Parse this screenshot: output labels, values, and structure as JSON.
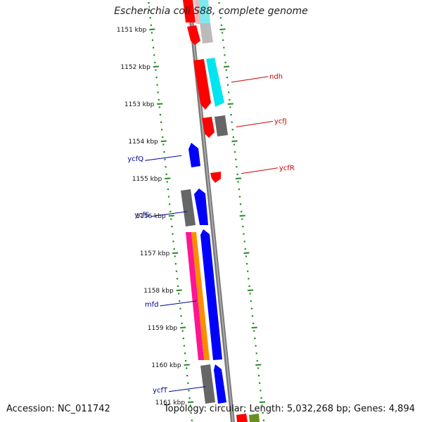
{
  "title": "Escherichia coli S88, complete genome",
  "footer": {
    "accession": "Accession: NC_011742",
    "topology": "Topology: circular; Length: 5,032,268 bp; Genes: 4,894"
  },
  "ticks": [
    {
      "kbp": 1151,
      "label": "1151 kbp"
    },
    {
      "kbp": 1152,
      "label": "1152 kbp"
    },
    {
      "kbp": 1153,
      "label": "1153 kbp"
    },
    {
      "kbp": 1154,
      "label": "1154 kbp"
    },
    {
      "kbp": 1155,
      "label": "1155 kbp"
    },
    {
      "kbp": 1156,
      "label": "1156 kbp"
    },
    {
      "kbp": 1157,
      "label": "1157 kbp"
    },
    {
      "kbp": 1158,
      "label": "1158 kbp"
    },
    {
      "kbp": 1159,
      "label": "1159 kbp"
    },
    {
      "kbp": 1160,
      "label": "1160 kbp"
    },
    {
      "kbp": 1161,
      "label": "1161 kbp"
    }
  ],
  "gene_labels": [
    {
      "name": "ndh",
      "side": "right",
      "color": "#cc0000",
      "at_kbp": 1152.3
    },
    {
      "name": "ycfJ",
      "side": "right",
      "color": "#cc0000",
      "at_kbp": 1153.5
    },
    {
      "name": "ycfR",
      "side": "right",
      "color": "#cc0000",
      "at_kbp": 1154.75
    },
    {
      "name": "ycfQ",
      "side": "left",
      "color": "#000099",
      "at_kbp": 1154.4
    },
    {
      "name": "ycfS",
      "side": "left",
      "color": "#000099",
      "at_kbp": 1155.9
    },
    {
      "name": "mfd",
      "side": "left",
      "color": "#000099",
      "at_kbp": 1158.3
    },
    {
      "name": "ycfT",
      "side": "left",
      "color": "#000099",
      "at_kbp": 1160.6
    }
  ],
  "colors": {
    "backbone": "#808080",
    "tick": "#228b22",
    "forward_cds": "#ff0000",
    "reverse_cds": "#0000ff",
    "cog_cyan": "#00e5ee",
    "cog_grey": "#666666",
    "cog_magenta": "#ff1493",
    "cog_orange": "#ff8c00",
    "cog_light_grey": "#bbbbbb",
    "cog_olive": "#6b8e23"
  }
}
